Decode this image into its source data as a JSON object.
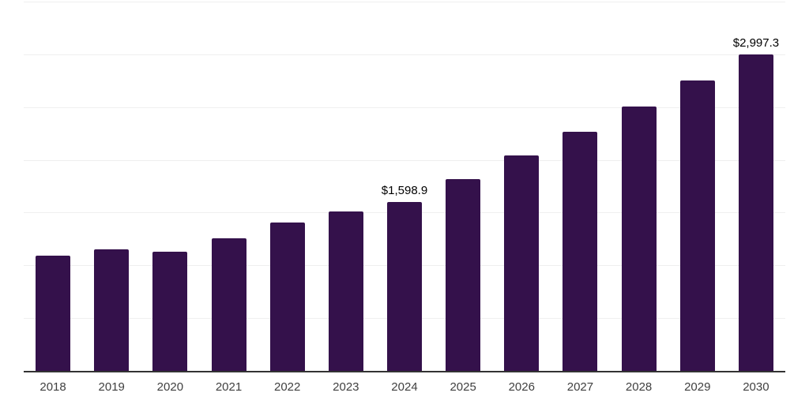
{
  "chart_data": {
    "type": "bar",
    "title": "",
    "xlabel": "",
    "ylabel": "",
    "categories": [
      "2018",
      "2019",
      "2020",
      "2021",
      "2022",
      "2023",
      "2024",
      "2025",
      "2026",
      "2027",
      "2028",
      "2029",
      "2030"
    ],
    "values": [
      1090,
      1155,
      1130,
      1260,
      1405,
      1510,
      1598.9,
      1820,
      2045,
      2265,
      2505,
      2755,
      2997.3
    ],
    "data_labels": [
      null,
      null,
      null,
      null,
      null,
      null,
      "$1,598.9",
      null,
      null,
      null,
      null,
      null,
      "$2,997.3"
    ],
    "ylim": [
      0,
      3500
    ],
    "gridline_step": 500,
    "grid": "horizontal",
    "legend": "none",
    "colors": {
      "bar": "#34114b",
      "gridline": "#efefef",
      "axis_line": "#333333",
      "tick_label": "#404040",
      "value_label": "#000000",
      "background": "#ffffff"
    }
  }
}
